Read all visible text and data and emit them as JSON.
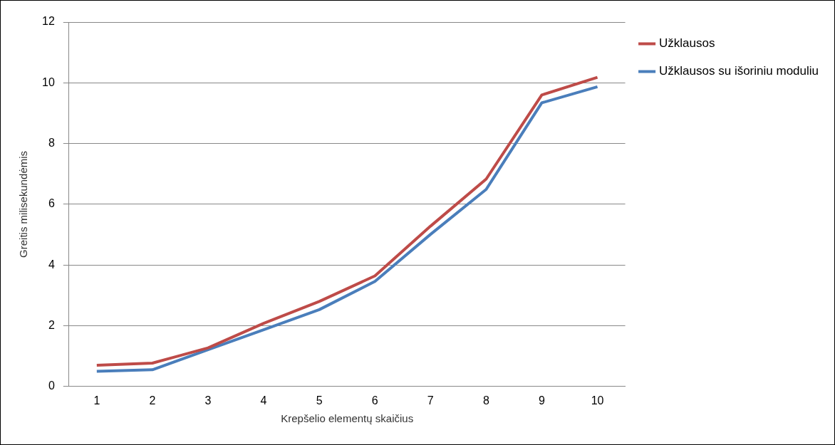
{
  "chart_data": {
    "type": "line",
    "xlabel": "Krepšelio elementų skaičius",
    "ylabel": "Greitis milisekundėmis",
    "categories": [
      "1",
      "2",
      "3",
      "4",
      "5",
      "6",
      "7",
      "8",
      "9",
      "10"
    ],
    "series": [
      {
        "name": "Užklausos",
        "color": "#be4b48",
        "values": [
          0.7,
          0.77,
          1.27,
          2.08,
          2.8,
          3.64,
          5.28,
          6.83,
          9.6,
          10.18
        ]
      },
      {
        "name": "Užklausos su išoriniu moduliu",
        "color": "#4a7ebb",
        "values": [
          0.5,
          0.55,
          1.21,
          1.87,
          2.53,
          3.46,
          5.01,
          6.49,
          9.34,
          9.87
        ]
      }
    ],
    "ylim": [
      0,
      12
    ],
    "yticks": [
      0,
      2,
      4,
      6,
      8,
      10,
      12
    ],
    "grid": "y",
    "legend": "top right",
    "marker": "none",
    "line_style": "solid"
  }
}
